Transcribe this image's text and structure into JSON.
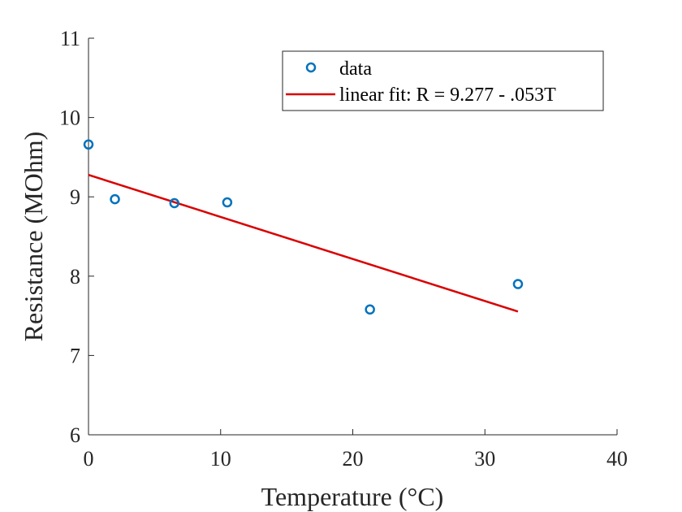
{
  "chart_data": {
    "type": "scatter",
    "xlabel": "Temperature (°C)",
    "ylabel": "Resistance (MOhm)",
    "xlim": [
      0,
      40
    ],
    "ylim": [
      6,
      11
    ],
    "x_ticks": [
      "0",
      "10",
      "20",
      "30",
      "40"
    ],
    "y_ticks": [
      "6",
      "7",
      "8",
      "9",
      "10",
      "11"
    ],
    "grid": false,
    "legend_position": "top-right",
    "series": [
      {
        "name": "data",
        "kind": "scatter",
        "marker": "circle-open",
        "color": "#0072BD",
        "points": [
          {
            "x": 0,
            "y": 9.66
          },
          {
            "x": 2,
            "y": 8.97
          },
          {
            "x": 6.5,
            "y": 8.92
          },
          {
            "x": 10.5,
            "y": 8.93
          },
          {
            "x": 21.3,
            "y": 7.58
          },
          {
            "x": 32.5,
            "y": 7.9
          }
        ]
      },
      {
        "name": "linear fit: R = 9.277 - .053T",
        "kind": "line",
        "color": "#D90000",
        "points": [
          {
            "x": 0,
            "y": 9.277
          },
          {
            "x": 32.5,
            "y": 7.554
          }
        ]
      }
    ]
  }
}
